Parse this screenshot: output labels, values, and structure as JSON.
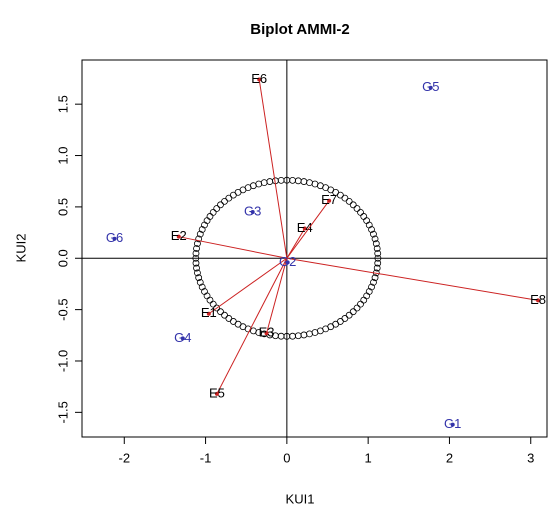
{
  "chart_data": {
    "type": "biplot",
    "title": "Biplot AMMI-2",
    "xlabel": "KUI1",
    "ylabel": "KUI2",
    "xlim": [
      -2.52,
      3.2
    ],
    "ylim": [
      -1.74,
      1.93
    ],
    "xticks": [
      -2,
      -1,
      0,
      1,
      2,
      3
    ],
    "yticks": [
      -1.5,
      {
        "value": -1,
        "label": "-1.0"
      },
      -0.5,
      {
        "value": 0,
        "label": "0.0"
      },
      0.5,
      {
        "value": 1,
        "label": "1.0"
      },
      1.5
    ],
    "genotypes": {
      "color": "#3333aa",
      "labels": [
        "G1",
        "G2",
        "G3",
        "G4",
        "G5",
        "G6"
      ],
      "x": [
        2.04,
        0.01,
        -0.42,
        -1.28,
        1.77,
        -2.12
      ],
      "y": [
        -1.62,
        -0.04,
        0.45,
        -0.78,
        1.66,
        0.19
      ]
    },
    "environments": {
      "color": "#000000",
      "arrow_color": "#cc2222",
      "labels": [
        "E1",
        "E2",
        "E3",
        "E4",
        "E5",
        "E6",
        "E7",
        "E8"
      ],
      "x": [
        -0.96,
        -1.33,
        -0.25,
        0.22,
        -0.86,
        -0.34,
        0.52,
        3.09
      ],
      "y": [
        -0.54,
        0.21,
        -0.73,
        0.29,
        -1.32,
        1.74,
        0.56,
        -0.41
      ]
    },
    "circle_radius": [
      1.12,
      0.76
    ]
  }
}
